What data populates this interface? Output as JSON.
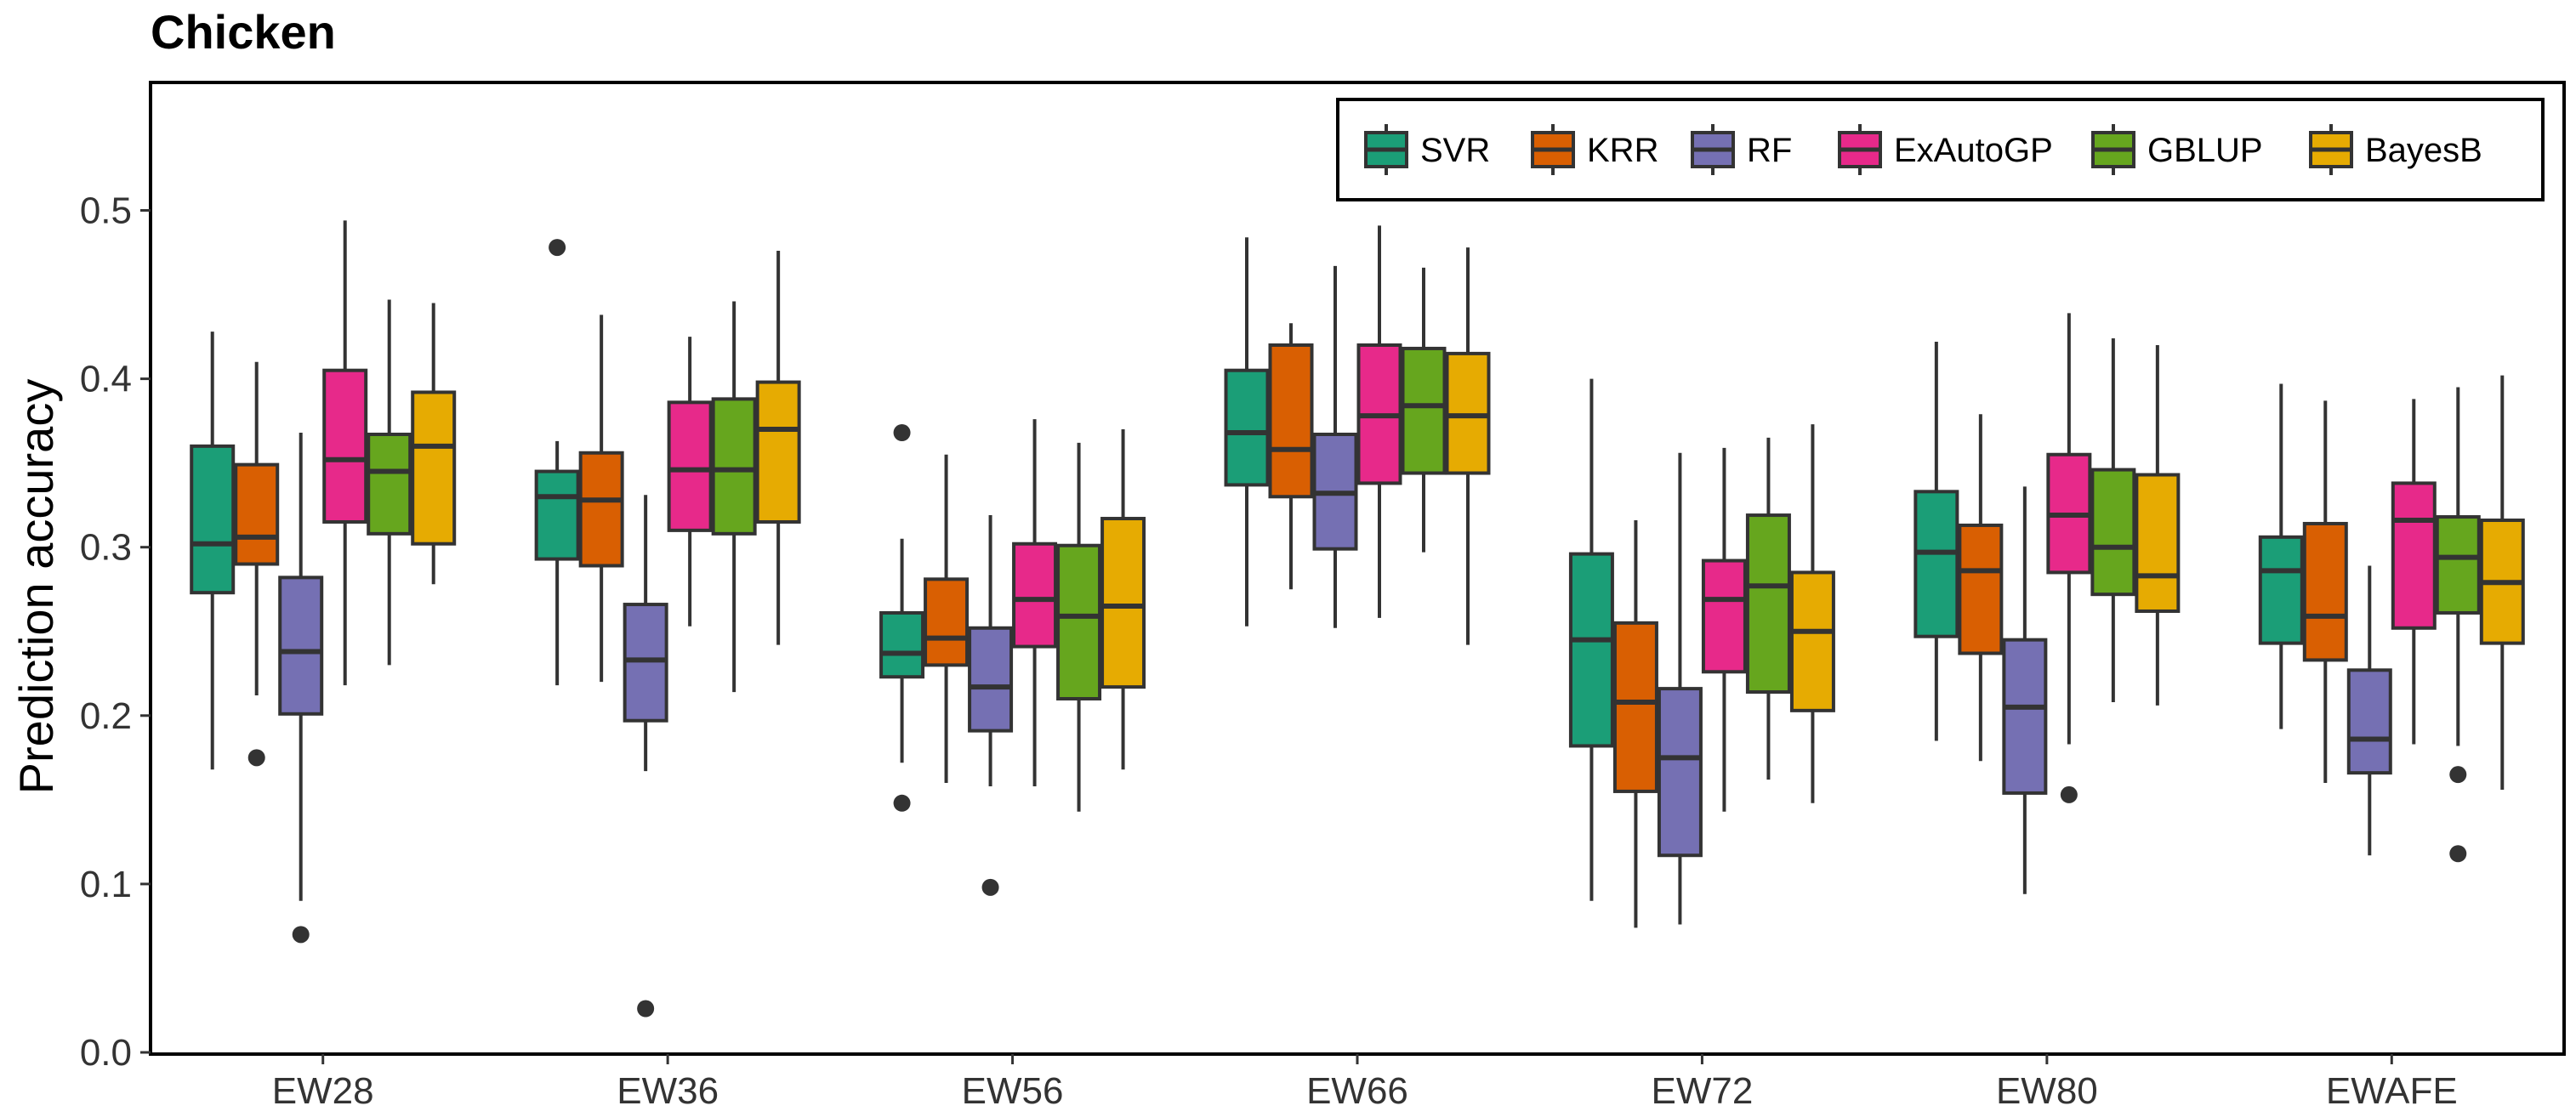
{
  "chart_data": {
    "type": "boxplot",
    "title": "Chicken",
    "xlabel": "",
    "ylabel": "Prediction accuracy",
    "ylim": [
      0.0,
      0.57
    ],
    "yticks": [
      0.0,
      0.1,
      0.2,
      0.3,
      0.4,
      0.5
    ],
    "ytick_labels": [
      "0.0",
      "0.1",
      "0.2",
      "0.3",
      "0.4",
      "0.5"
    ],
    "grid": false,
    "legend_position": "top-right",
    "categories": [
      "EW28",
      "EW36",
      "EW56",
      "EW66",
      "EW72",
      "EW80",
      "EWAFE"
    ],
    "series": [
      {
        "name": "SVR",
        "color": "#1b9e77",
        "boxes": [
          {
            "min": 0.168,
            "q1": 0.273,
            "median": 0.302,
            "q3": 0.36,
            "max": 0.428,
            "outliers": []
          },
          {
            "min": 0.218,
            "q1": 0.293,
            "median": 0.33,
            "q3": 0.345,
            "max": 0.363,
            "outliers": [
              0.478
            ]
          },
          {
            "min": 0.172,
            "q1": 0.223,
            "median": 0.237,
            "q3": 0.261,
            "max": 0.305,
            "outliers": [
              0.368,
              0.148
            ]
          },
          {
            "min": 0.253,
            "q1": 0.337,
            "median": 0.368,
            "q3": 0.405,
            "max": 0.484,
            "outliers": []
          },
          {
            "min": 0.09,
            "q1": 0.182,
            "median": 0.245,
            "q3": 0.296,
            "max": 0.4,
            "outliers": []
          },
          {
            "min": 0.185,
            "q1": 0.247,
            "median": 0.297,
            "q3": 0.333,
            "max": 0.422,
            "outliers": []
          },
          {
            "min": 0.192,
            "q1": 0.243,
            "median": 0.286,
            "q3": 0.306,
            "max": 0.397,
            "outliers": []
          }
        ]
      },
      {
        "name": "KRR",
        "color": "#d95f02",
        "boxes": [
          {
            "min": 0.212,
            "q1": 0.29,
            "median": 0.306,
            "q3": 0.349,
            "max": 0.41,
            "outliers": [
              0.175
            ]
          },
          {
            "min": 0.22,
            "q1": 0.289,
            "median": 0.328,
            "q3": 0.356,
            "max": 0.438,
            "outliers": []
          },
          {
            "min": 0.16,
            "q1": 0.23,
            "median": 0.246,
            "q3": 0.281,
            "max": 0.355,
            "outliers": []
          },
          {
            "min": 0.275,
            "q1": 0.33,
            "median": 0.358,
            "q3": 0.42,
            "max": 0.433,
            "outliers": []
          },
          {
            "min": 0.074,
            "q1": 0.155,
            "median": 0.208,
            "q3": 0.255,
            "max": 0.316,
            "outliers": []
          },
          {
            "min": 0.173,
            "q1": 0.237,
            "median": 0.286,
            "q3": 0.313,
            "max": 0.379,
            "outliers": []
          },
          {
            "min": 0.16,
            "q1": 0.233,
            "median": 0.259,
            "q3": 0.314,
            "max": 0.387,
            "outliers": []
          }
        ]
      },
      {
        "name": "RF",
        "color": "#7570b3",
        "boxes": [
          {
            "min": 0.09,
            "q1": 0.201,
            "median": 0.238,
            "q3": 0.282,
            "max": 0.368,
            "outliers": [
              0.07
            ]
          },
          {
            "min": 0.167,
            "q1": 0.197,
            "median": 0.233,
            "q3": 0.266,
            "max": 0.331,
            "outliers": [
              0.026
            ]
          },
          {
            "min": 0.158,
            "q1": 0.191,
            "median": 0.217,
            "q3": 0.252,
            "max": 0.319,
            "outliers": [
              0.098
            ]
          },
          {
            "min": 0.252,
            "q1": 0.299,
            "median": 0.332,
            "q3": 0.367,
            "max": 0.467,
            "outliers": []
          },
          {
            "min": 0.076,
            "q1": 0.117,
            "median": 0.175,
            "q3": 0.216,
            "max": 0.356,
            "outliers": []
          },
          {
            "min": 0.094,
            "q1": 0.154,
            "median": 0.205,
            "q3": 0.245,
            "max": 0.336,
            "outliers": []
          },
          {
            "min": 0.117,
            "q1": 0.166,
            "median": 0.186,
            "q3": 0.227,
            "max": 0.289,
            "outliers": []
          }
        ]
      },
      {
        "name": "ExAutoGP",
        "color": "#e7298a",
        "boxes": [
          {
            "min": 0.218,
            "q1": 0.315,
            "median": 0.352,
            "q3": 0.405,
            "max": 0.494,
            "outliers": []
          },
          {
            "min": 0.253,
            "q1": 0.31,
            "median": 0.346,
            "q3": 0.386,
            "max": 0.425,
            "outliers": []
          },
          {
            "min": 0.158,
            "q1": 0.241,
            "median": 0.269,
            "q3": 0.302,
            "max": 0.376,
            "outliers": []
          },
          {
            "min": 0.258,
            "q1": 0.338,
            "median": 0.378,
            "q3": 0.42,
            "max": 0.491,
            "outliers": []
          },
          {
            "min": 0.143,
            "q1": 0.226,
            "median": 0.269,
            "q3": 0.292,
            "max": 0.359,
            "outliers": []
          },
          {
            "min": 0.183,
            "q1": 0.285,
            "median": 0.319,
            "q3": 0.355,
            "max": 0.439,
            "outliers": [
              0.153
            ]
          },
          {
            "min": 0.183,
            "q1": 0.252,
            "median": 0.316,
            "q3": 0.338,
            "max": 0.388,
            "outliers": []
          }
        ]
      },
      {
        "name": "GBLUP",
        "color": "#66a61e",
        "boxes": [
          {
            "min": 0.23,
            "q1": 0.308,
            "median": 0.345,
            "q3": 0.367,
            "max": 0.447,
            "outliers": []
          },
          {
            "min": 0.214,
            "q1": 0.308,
            "median": 0.346,
            "q3": 0.388,
            "max": 0.446,
            "outliers": []
          },
          {
            "min": 0.143,
            "q1": 0.21,
            "median": 0.259,
            "q3": 0.301,
            "max": 0.362,
            "outliers": []
          },
          {
            "min": 0.297,
            "q1": 0.344,
            "median": 0.384,
            "q3": 0.418,
            "max": 0.466,
            "outliers": []
          },
          {
            "min": 0.162,
            "q1": 0.214,
            "median": 0.277,
            "q3": 0.319,
            "max": 0.365,
            "outliers": []
          },
          {
            "min": 0.208,
            "q1": 0.272,
            "median": 0.3,
            "q3": 0.346,
            "max": 0.424,
            "outliers": []
          },
          {
            "min": 0.182,
            "q1": 0.261,
            "median": 0.294,
            "q3": 0.318,
            "max": 0.395,
            "outliers": [
              0.165,
              0.118
            ]
          }
        ]
      },
      {
        "name": "BayesB",
        "color": "#e6ab02",
        "boxes": [
          {
            "min": 0.278,
            "q1": 0.302,
            "median": 0.36,
            "q3": 0.392,
            "max": 0.445,
            "outliers": []
          },
          {
            "min": 0.242,
            "q1": 0.315,
            "median": 0.37,
            "q3": 0.398,
            "max": 0.476,
            "outliers": []
          },
          {
            "min": 0.168,
            "q1": 0.217,
            "median": 0.265,
            "q3": 0.317,
            "max": 0.37,
            "outliers": []
          },
          {
            "min": 0.242,
            "q1": 0.344,
            "median": 0.378,
            "q3": 0.415,
            "max": 0.478,
            "outliers": []
          },
          {
            "min": 0.148,
            "q1": 0.203,
            "median": 0.25,
            "q3": 0.285,
            "max": 0.373,
            "outliers": []
          },
          {
            "min": 0.206,
            "q1": 0.262,
            "median": 0.283,
            "q3": 0.343,
            "max": 0.42,
            "outliers": []
          },
          {
            "min": 0.156,
            "q1": 0.243,
            "median": 0.279,
            "q3": 0.316,
            "max": 0.402,
            "outliers": []
          }
        ]
      }
    ]
  }
}
